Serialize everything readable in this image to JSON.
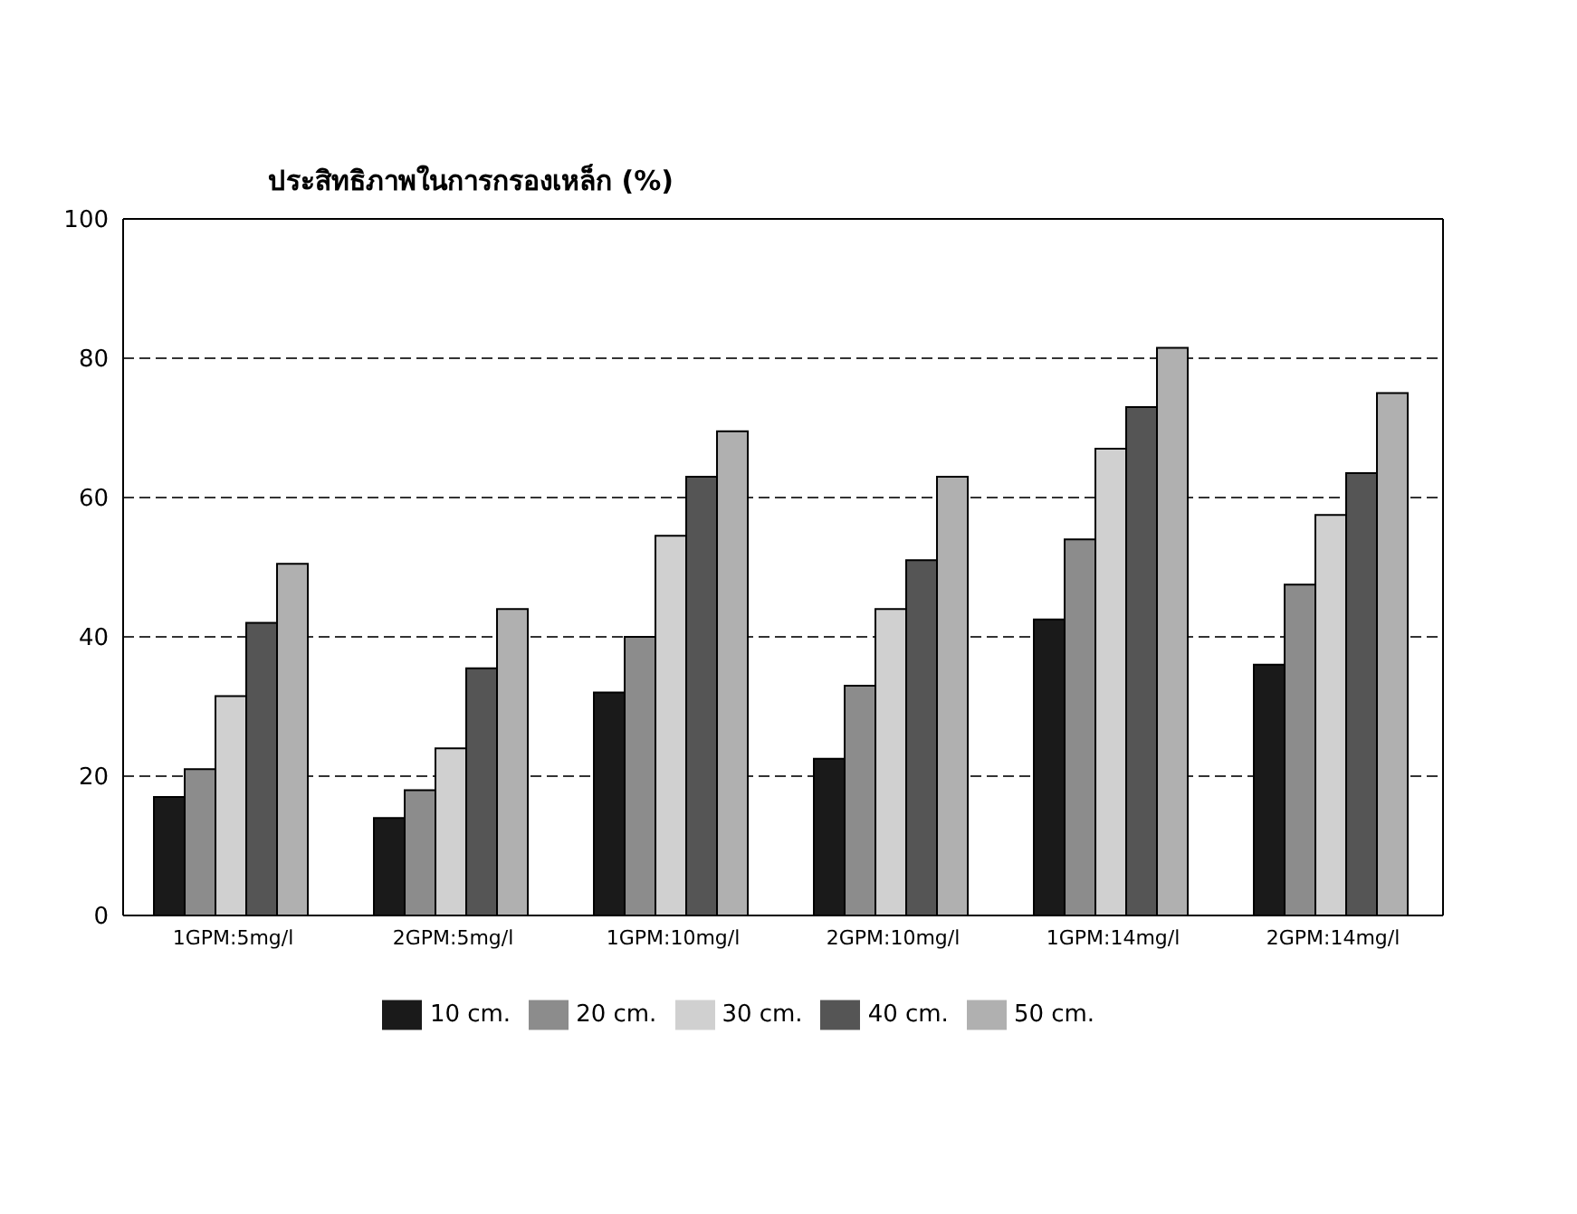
{
  "chart_data": {
    "type": "bar",
    "title": "ประสิทธิภาพในการกรองเหล็ก (%)",
    "categories": [
      "1GPM:5mg/l",
      "2GPM:5mg/l",
      "1GPM:10mg/l",
      "2GPM:10mg/l",
      "1GPM:14mg/l",
      "2GPM:14mg/l"
    ],
    "series": [
      {
        "name": "10 cm.",
        "color": "#1a1a1a",
        "values": [
          17,
          14,
          32,
          22.5,
          42.5,
          36
        ]
      },
      {
        "name": "20 cm.",
        "color": "#8c8c8c",
        "values": [
          21,
          18,
          40,
          33,
          54,
          47.5
        ]
      },
      {
        "name": "30 cm.",
        "color": "#d0d0d0",
        "values": [
          31.5,
          24,
          54.5,
          44,
          67,
          57.5
        ]
      },
      {
        "name": "40 cm.",
        "color": "#555555",
        "values": [
          42,
          35.5,
          63,
          51,
          73,
          63.5
        ]
      },
      {
        "name": "50 cm.",
        "color": "#b0b0b0",
        "values": [
          50.5,
          44,
          69.5,
          63,
          81.5,
          75
        ]
      }
    ],
    "ylim": [
      0,
      100
    ],
    "yticks": [
      0,
      20,
      40,
      60,
      80,
      100
    ],
    "grid": "y",
    "legend": "bottom"
  }
}
